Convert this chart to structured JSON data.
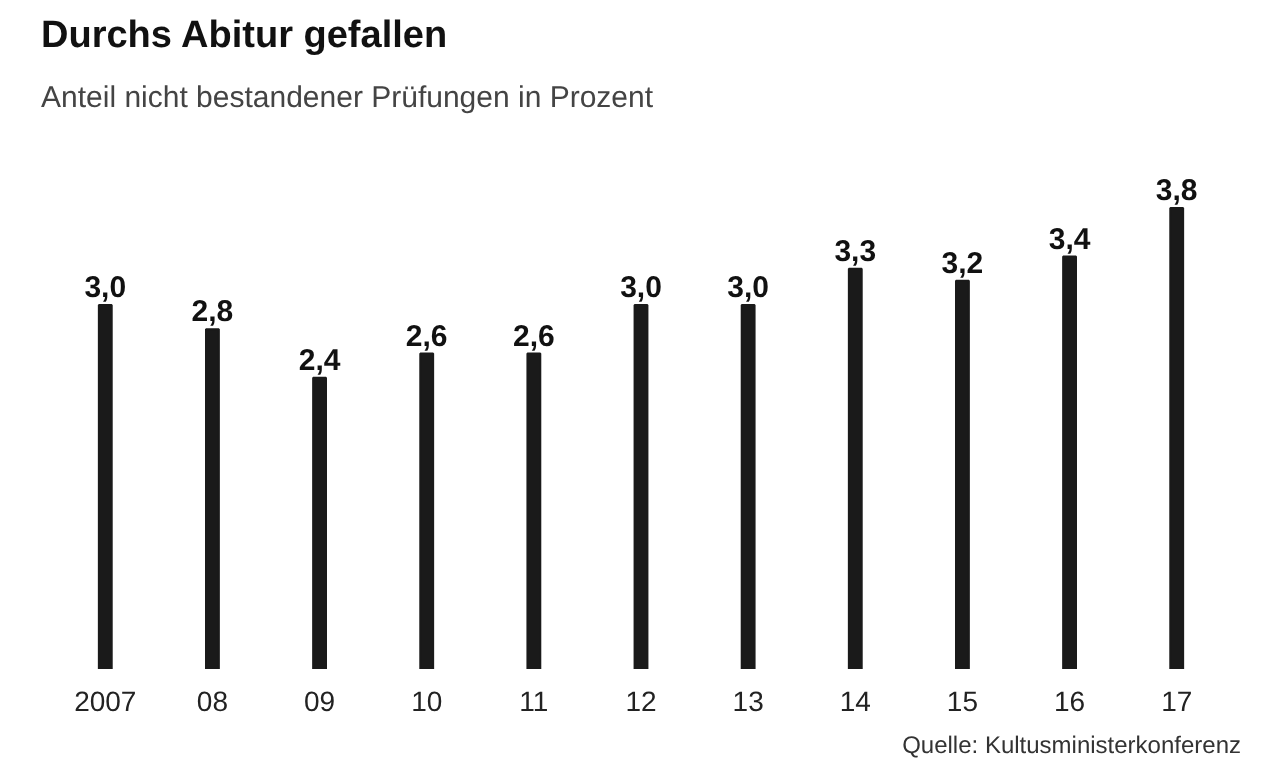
{
  "chart_data": {
    "type": "bar",
    "title": "Durchs Abitur gefallen",
    "subtitle": "Anteil nicht bestandener Prüfungen in Prozent",
    "categories": [
      "2007",
      "08",
      "09",
      "10",
      "11",
      "12",
      "13",
      "14",
      "15",
      "16",
      "17"
    ],
    "values": [
      3.0,
      2.8,
      2.4,
      2.6,
      2.6,
      3.0,
      3.0,
      3.3,
      3.2,
      3.4,
      3.8
    ],
    "value_labels": [
      "3,0",
      "2,8",
      "2,4",
      "2,6",
      "2,6",
      "3,0",
      "3,0",
      "3,3",
      "3,2",
      "3,4",
      "3,8"
    ],
    "color": "#1a1a1a",
    "grid": false,
    "annotations": [
      "Quelle: Kultusministerkonferenz"
    ]
  }
}
